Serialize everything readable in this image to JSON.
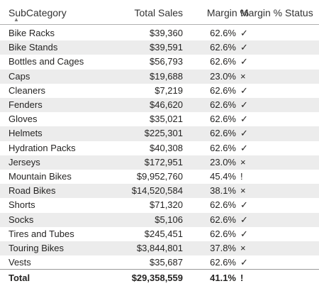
{
  "table": {
    "headers": {
      "subcategory": "SubCategory",
      "total_sales": "Total Sales",
      "margin_pct": "Margin %",
      "margin_status": "Margin % Status"
    },
    "sort_indicator_icon": "sort-caret-up-icon",
    "rows": [
      {
        "subcategory": "Bike Racks",
        "total_sales": "$39,360",
        "margin_pct": "62.6%",
        "status": "✓"
      },
      {
        "subcategory": "Bike Stands",
        "total_sales": "$39,591",
        "margin_pct": "62.6%",
        "status": "✓"
      },
      {
        "subcategory": "Bottles and Cages",
        "total_sales": "$56,793",
        "margin_pct": "62.6%",
        "status": "✓"
      },
      {
        "subcategory": "Caps",
        "total_sales": "$19,688",
        "margin_pct": "23.0%",
        "status": "×"
      },
      {
        "subcategory": "Cleaners",
        "total_sales": "$7,219",
        "margin_pct": "62.6%",
        "status": "✓"
      },
      {
        "subcategory": "Fenders",
        "total_sales": "$46,620",
        "margin_pct": "62.6%",
        "status": "✓"
      },
      {
        "subcategory": "Gloves",
        "total_sales": "$35,021",
        "margin_pct": "62.6%",
        "status": "✓"
      },
      {
        "subcategory": "Helmets",
        "total_sales": "$225,301",
        "margin_pct": "62.6%",
        "status": "✓"
      },
      {
        "subcategory": "Hydration Packs",
        "total_sales": "$40,308",
        "margin_pct": "62.6%",
        "status": "✓"
      },
      {
        "subcategory": "Jerseys",
        "total_sales": "$172,951",
        "margin_pct": "23.0%",
        "status": "×"
      },
      {
        "subcategory": "Mountain Bikes",
        "total_sales": "$9,952,760",
        "margin_pct": "45.4%",
        "status": "!"
      },
      {
        "subcategory": "Road Bikes",
        "total_sales": "$14,520,584",
        "margin_pct": "38.1%",
        "status": "×"
      },
      {
        "subcategory": "Shorts",
        "total_sales": "$71,320",
        "margin_pct": "62.6%",
        "status": "✓"
      },
      {
        "subcategory": "Socks",
        "total_sales": "$5,106",
        "margin_pct": "62.6%",
        "status": "✓"
      },
      {
        "subcategory": "Tires and Tubes",
        "total_sales": "$245,451",
        "margin_pct": "62.6%",
        "status": "✓"
      },
      {
        "subcategory": "Touring Bikes",
        "total_sales": "$3,844,801",
        "margin_pct": "37.8%",
        "status": "×"
      },
      {
        "subcategory": "Vests",
        "total_sales": "$35,687",
        "margin_pct": "62.6%",
        "status": "✓"
      }
    ],
    "total": {
      "label": "Total",
      "total_sales": "$29,358,559",
      "margin_pct": "41.1%",
      "status": "!"
    }
  }
}
